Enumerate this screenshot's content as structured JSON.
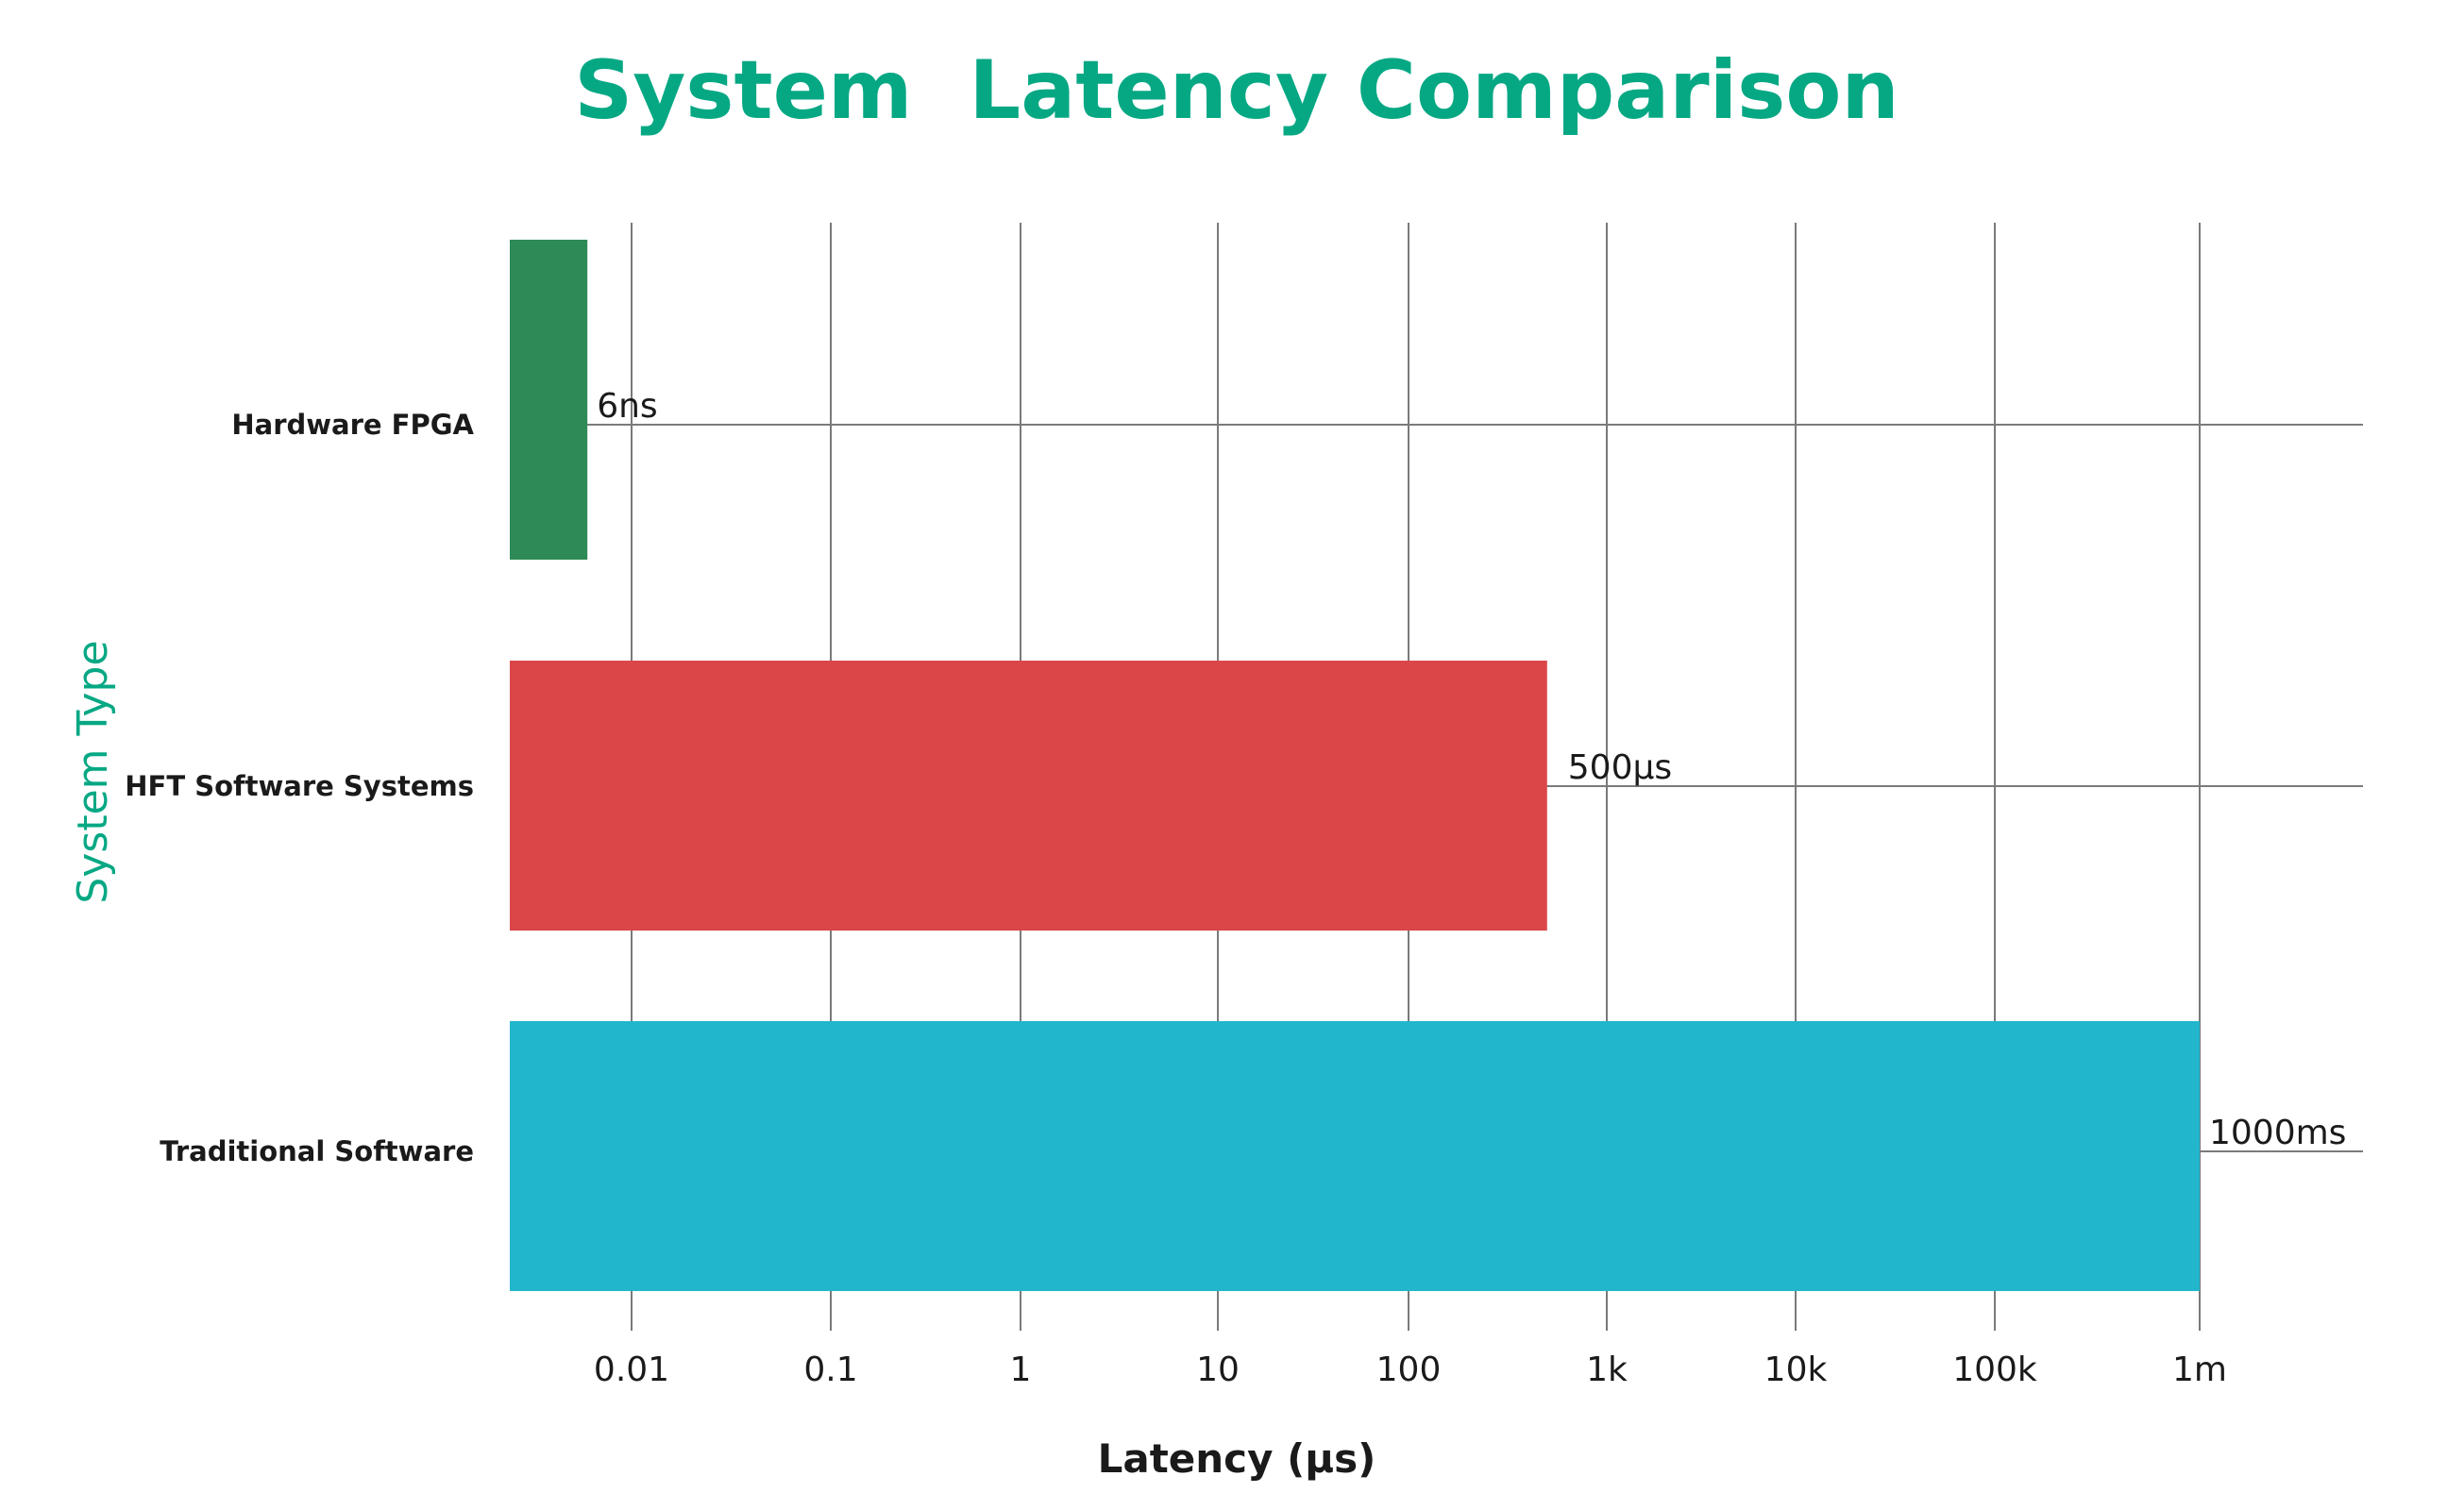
{
  "chart_data": {
    "type": "bar",
    "orientation": "horizontal",
    "title": "System  Latency Comparison",
    "xlabel": "Latency (μs)",
    "ylabel": "System Type",
    "x_scale": "log",
    "xlim": [
      0.001,
      10000000
    ],
    "x_ticks": [
      0.01,
      0.1,
      1,
      10,
      100,
      1000,
      10000,
      100000,
      1000000
    ],
    "x_tick_labels": [
      "0.01",
      "0.1",
      "1",
      "10",
      "100",
      "1k",
      "10k",
      "100k",
      "1m"
    ],
    "categories": [
      "Hardware FPGA",
      "HFT Software Systems",
      "Traditional Software"
    ],
    "values": [
      0.006,
      500,
      1000000
    ],
    "data_labels": [
      "6ns",
      "500μs",
      "1000ms"
    ],
    "colors": [
      "#2e8b57",
      "#db4648",
      "#21b6cc"
    ],
    "grid": true,
    "legend": "none"
  }
}
